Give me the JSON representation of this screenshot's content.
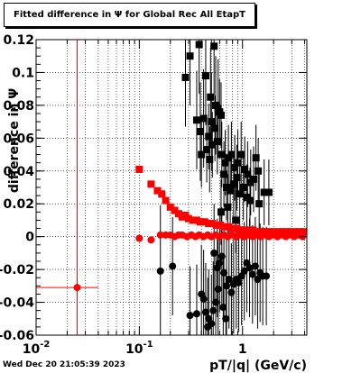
{
  "title": "Fitted difference in  Ψ  for Global Rec All EtapT",
  "footer_timestamp": "Wed Dec 20 21:05:39 2023",
  "colors": {
    "black_series": "#000000",
    "red_series": "#ff0000",
    "grid": "#000000",
    "background": "#ffffff"
  },
  "chart_data": {
    "type": "scatter",
    "title": "Fitted difference in  Ψ  for Global Rec All EtapT",
    "xlabel": "pT/|q| (GeV/c)",
    "ylabel": "difference in  Ψ",
    "xscale": "log",
    "xlim": [
      0.01,
      4.2
    ],
    "ylim": [
      -0.06,
      0.12
    ],
    "grid": true,
    "x_ticks": [
      {
        "v": 0.01,
        "label": "10",
        "sup": "-2"
      },
      {
        "v": 0.1,
        "label": "10",
        "sup": "-1"
      },
      {
        "v": 1,
        "label": "1",
        "sup": ""
      }
    ],
    "y_ticks": [
      {
        "v": -0.06,
        "label": "-0.06"
      },
      {
        "v": -0.04,
        "label": "-0.04"
      },
      {
        "v": -0.02,
        "label": "-0.02"
      },
      {
        "v": 0,
        "label": "0"
      },
      {
        "v": 0.02,
        "label": "0.02"
      },
      {
        "v": 0.04,
        "label": "0.04"
      },
      {
        "v": 0.06,
        "label": "0.06"
      },
      {
        "v": 0.08,
        "label": "0.08"
      },
      {
        "v": 0.1,
        "label": "0.1"
      },
      {
        "v": 0.12,
        "label": "0.12"
      }
    ],
    "series": [
      {
        "marker": "square",
        "color": "#000000",
        "points": [
          {
            "x": 0.38,
            "y": 0.117,
            "ey": 0.03
          },
          {
            "x": 0.31,
            "y": 0.11,
            "ey": 0.03
          },
          {
            "x": 0.53,
            "y": 0.116,
            "ey": 0.03
          },
          {
            "x": 0.28,
            "y": 0.097,
            "ey": 0.03
          },
          {
            "x": 0.44,
            "y": 0.098,
            "ey": 0.03
          },
          {
            "x": 0.49,
            "y": 0.085,
            "ey": 0.03
          },
          {
            "x": 0.5,
            "y": 0.07,
            "ey": 0.03
          },
          {
            "x": 0.42,
            "y": 0.072,
            "ey": 0.03
          },
          {
            "x": 0.36,
            "y": 0.071,
            "ey": 0.03
          },
          {
            "x": 0.39,
            "y": 0.064,
            "ey": 0.03
          },
          {
            "x": 0.55,
            "y": 0.08,
            "ey": 0.03
          },
          {
            "x": 0.58,
            "y": 0.078,
            "ey": 0.03
          },
          {
            "x": 0.6,
            "y": 0.076,
            "ey": 0.02
          },
          {
            "x": 0.62,
            "y": 0.074,
            "ey": 0.02
          },
          {
            "x": 0.54,
            "y": 0.066,
            "ey": 0.02
          },
          {
            "x": 0.47,
            "y": 0.061,
            "ey": 0.02
          },
          {
            "x": 0.51,
            "y": 0.056,
            "ey": 0.02
          },
          {
            "x": 0.57,
            "y": 0.058,
            "ey": 0.02
          },
          {
            "x": 0.45,
            "y": 0.053,
            "ey": 0.02
          },
          {
            "x": 0.4,
            "y": 0.05,
            "ey": 0.02
          },
          {
            "x": 0.63,
            "y": 0.05,
            "ey": 0.02
          },
          {
            "x": 0.48,
            "y": 0.047,
            "ey": 0.02
          },
          {
            "x": 0.68,
            "y": 0.045,
            "ey": 0.02
          },
          {
            "x": 0.73,
            "y": 0.048,
            "ey": 0.02
          },
          {
            "x": 0.78,
            "y": 0.05,
            "ey": 0.02
          },
          {
            "x": 0.84,
            "y": 0.042,
            "ey": 0.02
          },
          {
            "x": 0.9,
            "y": 0.045,
            "ey": 0.02
          },
          {
            "x": 0.97,
            "y": 0.05,
            "ey": 0.02
          },
          {
            "x": 1.05,
            "y": 0.041,
            "ey": 0.02
          },
          {
            "x": 1.12,
            "y": 0.038,
            "ey": 0.02
          },
          {
            "x": 1.2,
            "y": 0.033,
            "ey": 0.02
          },
          {
            "x": 1.28,
            "y": 0.035,
            "ey": 0.02
          },
          {
            "x": 1.35,
            "y": 0.048,
            "ey": 0.02
          },
          {
            "x": 1.42,
            "y": 0.04,
            "ey": 0.02
          },
          {
            "x": 0.66,
            "y": 0.038,
            "ey": 0.02
          },
          {
            "x": 0.7,
            "y": 0.03,
            "ey": 0.02
          },
          {
            "x": 0.76,
            "y": 0.028,
            "ey": 0.02
          },
          {
            "x": 0.82,
            "y": 0.032,
            "ey": 0.02
          },
          {
            "x": 0.88,
            "y": 0.036,
            "ey": 0.02
          },
          {
            "x": 0.94,
            "y": 0.026,
            "ey": 0.02
          },
          {
            "x": 1.02,
            "y": 0.03,
            "ey": 0.02
          },
          {
            "x": 1.1,
            "y": 0.024,
            "ey": 0.02
          },
          {
            "x": 1.18,
            "y": 0.022,
            "ey": 0.02
          },
          {
            "x": 1.45,
            "y": 0.02,
            "ey": 0.02
          },
          {
            "x": 0.72,
            "y": 0.018,
            "ey": 0.02
          },
          {
            "x": 0.62,
            "y": 0.015,
            "ey": 0.02
          },
          {
            "x": 1.62,
            "y": 0.027,
            "ey": 0.02
          },
          {
            "x": 1.8,
            "y": 0.027,
            "ey": 0.02
          },
          {
            "x": 0.86,
            "y": 0.01,
            "ey": 0.02
          }
        ]
      },
      {
        "marker": "circle",
        "color": "#000000",
        "points": [
          {
            "x": 0.16,
            "y": -0.021,
            "ey": 0.04
          },
          {
            "x": 0.21,
            "y": -0.018,
            "ey": 0.03
          },
          {
            "x": 0.36,
            "y": -0.047,
            "ey": 0.03
          },
          {
            "x": 0.31,
            "y": -0.048,
            "ey": 0.03
          },
          {
            "x": 0.4,
            "y": -0.035,
            "ey": 0.03
          },
          {
            "x": 0.42,
            "y": -0.038,
            "ey": 0.03
          },
          {
            "x": 0.44,
            "y": -0.046,
            "ey": 0.03
          },
          {
            "x": 0.47,
            "y": -0.05,
            "ey": 0.03
          },
          {
            "x": 0.5,
            "y": -0.053,
            "ey": 0.03
          },
          {
            "x": 0.52,
            "y": -0.045,
            "ey": 0.03
          },
          {
            "x": 0.55,
            "y": -0.04,
            "ey": 0.03
          },
          {
            "x": 0.58,
            "y": -0.032,
            "ey": 0.03
          },
          {
            "x": 0.6,
            "y": -0.016,
            "ey": 0.03
          },
          {
            "x": 0.63,
            "y": -0.012,
            "ey": 0.03
          },
          {
            "x": 0.57,
            "y": -0.019,
            "ey": 0.03
          },
          {
            "x": 0.53,
            "y": -0.01,
            "ey": 0.03
          },
          {
            "x": 0.66,
            "y": -0.022,
            "ey": 0.03
          },
          {
            "x": 0.7,
            "y": -0.03,
            "ey": 0.03
          },
          {
            "x": 0.74,
            "y": -0.026,
            "ey": 0.03
          },
          {
            "x": 0.78,
            "y": -0.034,
            "ey": 0.03
          },
          {
            "x": 0.82,
            "y": -0.029,
            "ey": 0.03
          },
          {
            "x": 0.87,
            "y": -0.026,
            "ey": 0.03
          },
          {
            "x": 0.92,
            "y": -0.028,
            "ey": 0.03
          },
          {
            "x": 0.98,
            "y": -0.024,
            "ey": 0.03
          },
          {
            "x": 1.04,
            "y": -0.021,
            "ey": 0.03
          },
          {
            "x": 1.1,
            "y": -0.016,
            "ey": 0.03
          },
          {
            "x": 1.17,
            "y": -0.019,
            "ey": 0.03
          },
          {
            "x": 1.25,
            "y": -0.023,
            "ey": 0.03
          },
          {
            "x": 1.33,
            "y": -0.018,
            "ey": 0.03
          },
          {
            "x": 1.4,
            "y": -0.026,
            "ey": 0.03
          },
          {
            "x": 1.48,
            "y": -0.022,
            "ey": 0.03
          },
          {
            "x": 1.57,
            "y": -0.024,
            "ey": 0.03
          },
          {
            "x": 1.7,
            "y": -0.024,
            "ey": 0.03
          },
          {
            "x": 0.65,
            "y": -0.043,
            "ey": 0.03
          },
          {
            "x": 0.69,
            "y": -0.05,
            "ey": 0.03
          },
          {
            "x": 0.46,
            "y": -0.055,
            "ey": 0.03
          }
        ]
      },
      {
        "marker": "square",
        "color": "#ff0000",
        "points": [
          {
            "x": 0.1,
            "y": 0.041,
            "ey": 0.001
          },
          {
            "x": 0.13,
            "y": 0.032,
            "ey": 0.001
          },
          {
            "x": 0.15,
            "y": 0.028,
            "ey": 0.001
          },
          {
            "x": 0.165,
            "y": 0.026,
            "ey": 0.001
          },
          {
            "x": 0.18,
            "y": 0.022,
            "ey": 0.001
          },
          {
            "x": 0.2,
            "y": 0.018,
            "ey": 0.001
          },
          {
            "x": 0.22,
            "y": 0.016,
            "ey": 0.001
          },
          {
            "x": 0.24,
            "y": 0.014,
            "ey": 0.001
          },
          {
            "x": 0.26,
            "y": 0.012,
            "ey": 0.001
          },
          {
            "x": 0.28,
            "y": 0.013,
            "ey": 0.001
          },
          {
            "x": 0.3,
            "y": 0.011,
            "ey": 0.001
          },
          {
            "x": 0.33,
            "y": 0.01,
            "ey": 0.001
          },
          {
            "x": 0.36,
            "y": 0.01,
            "ey": 0.001
          },
          {
            "x": 0.39,
            "y": 0.009,
            "ey": 0.001
          },
          {
            "x": 0.43,
            "y": 0.009,
            "ey": 0.001
          },
          {
            "x": 0.47,
            "y": 0.008,
            "ey": 0.001
          },
          {
            "x": 0.51,
            "y": 0.008,
            "ey": 0.001
          },
          {
            "x": 0.56,
            "y": 0.007,
            "ey": 0.001
          },
          {
            "x": 0.61,
            "y": 0.007,
            "ey": 0.001
          },
          {
            "x": 0.67,
            "y": 0.006,
            "ey": 0.001
          },
          {
            "x": 0.73,
            "y": 0.006,
            "ey": 0.001
          },
          {
            "x": 0.8,
            "y": 0.005,
            "ey": 0.001
          },
          {
            "x": 0.88,
            "y": 0.005,
            "ey": 0.001
          },
          {
            "x": 0.96,
            "y": 0.004,
            "ey": 0.001
          },
          {
            "x": 1.05,
            "y": 0.004,
            "ey": 0.001
          },
          {
            "x": 1.15,
            "y": 0.004,
            "ey": 0.001
          },
          {
            "x": 1.26,
            "y": 0.004,
            "ey": 0.001
          },
          {
            "x": 1.38,
            "y": 0.003,
            "ey": 0.001
          },
          {
            "x": 1.51,
            "y": 0.003,
            "ey": 0.001
          },
          {
            "x": 1.66,
            "y": 0.003,
            "ey": 0.001
          },
          {
            "x": 1.82,
            "y": 0.003,
            "ey": 0.001
          },
          {
            "x": 2.0,
            "y": 0.003,
            "ey": 0.001
          },
          {
            "x": 2.2,
            "y": 0.003,
            "ey": 0.001
          },
          {
            "x": 2.42,
            "y": 0.003,
            "ey": 0.001
          },
          {
            "x": 2.66,
            "y": 0.003,
            "ey": 0.001
          },
          {
            "x": 2.93,
            "y": 0.003,
            "ey": 0.001
          },
          {
            "x": 3.22,
            "y": 0.003,
            "ey": 0.001
          },
          {
            "x": 3.54,
            "y": 0.003,
            "ey": 0.001
          },
          {
            "x": 3.9,
            "y": 0.003,
            "ey": 0.001
          }
        ]
      },
      {
        "marker": "circle",
        "color": "#ff0000",
        "points": [
          {
            "x": 0.025,
            "y": -0.031,
            "ey": 0.16,
            "ex": [
              0.01,
              0.04
            ]
          },
          {
            "x": 0.1,
            "y": -0.001,
            "ey": 0.002
          },
          {
            "x": 0.13,
            "y": -0.002,
            "ey": 0.002
          },
          {
            "x": 0.16,
            "y": 0.001,
            "ey": 0.002
          },
          {
            "x": 0.18,
            "y": 0.001,
            "ey": 0.002
          },
          {
            "x": 0.2,
            "y": 0.001,
            "ey": 0.001
          },
          {
            "x": 0.22,
            "y": 0.0,
            "ey": 0.001
          },
          {
            "x": 0.24,
            "y": 0.001,
            "ey": 0.001
          },
          {
            "x": 0.26,
            "y": 0.001,
            "ey": 0.001
          },
          {
            "x": 0.29,
            "y": 0.0,
            "ey": 0.001
          },
          {
            "x": 0.32,
            "y": 0.001,
            "ey": 0.001
          },
          {
            "x": 0.35,
            "y": 0.0,
            "ey": 0.001
          },
          {
            "x": 0.38,
            "y": 0.001,
            "ey": 0.001
          },
          {
            "x": 0.42,
            "y": 0.0,
            "ey": 0.001
          },
          {
            "x": 0.46,
            "y": 0.001,
            "ey": 0.001
          },
          {
            "x": 0.5,
            "y": 0.0,
            "ey": 0.001
          },
          {
            "x": 0.55,
            "y": 0.001,
            "ey": 0.001
          },
          {
            "x": 0.6,
            "y": 0.0,
            "ey": 0.001
          },
          {
            "x": 0.66,
            "y": 0.001,
            "ey": 0.001
          },
          {
            "x": 0.72,
            "y": 0.0,
            "ey": 0.001
          },
          {
            "x": 0.79,
            "y": 0.001,
            "ey": 0.001
          },
          {
            "x": 0.87,
            "y": 0.0,
            "ey": 0.001
          },
          {
            "x": 0.95,
            "y": 0.001,
            "ey": 0.001
          },
          {
            "x": 1.04,
            "y": 0.0,
            "ey": 0.001
          },
          {
            "x": 1.14,
            "y": 0.001,
            "ey": 0.001
          },
          {
            "x": 1.25,
            "y": 0.0,
            "ey": 0.001
          },
          {
            "x": 1.37,
            "y": 0.001,
            "ey": 0.001
          },
          {
            "x": 1.5,
            "y": 0.0,
            "ey": 0.001
          },
          {
            "x": 1.65,
            "y": 0.001,
            "ey": 0.001
          },
          {
            "x": 1.81,
            "y": 0.0,
            "ey": 0.001
          },
          {
            "x": 1.99,
            "y": 0.001,
            "ey": 0.001
          },
          {
            "x": 2.18,
            "y": 0.0,
            "ey": 0.001
          },
          {
            "x": 2.4,
            "y": 0.001,
            "ey": 0.001
          },
          {
            "x": 2.63,
            "y": 0.0,
            "ey": 0.001
          },
          {
            "x": 2.89,
            "y": 0.001,
            "ey": 0.001
          },
          {
            "x": 3.17,
            "y": 0.0,
            "ey": 0.001
          },
          {
            "x": 3.48,
            "y": 0.001,
            "ey": 0.001
          },
          {
            "x": 3.82,
            "y": 0.0,
            "ey": 0.001
          }
        ]
      }
    ]
  }
}
